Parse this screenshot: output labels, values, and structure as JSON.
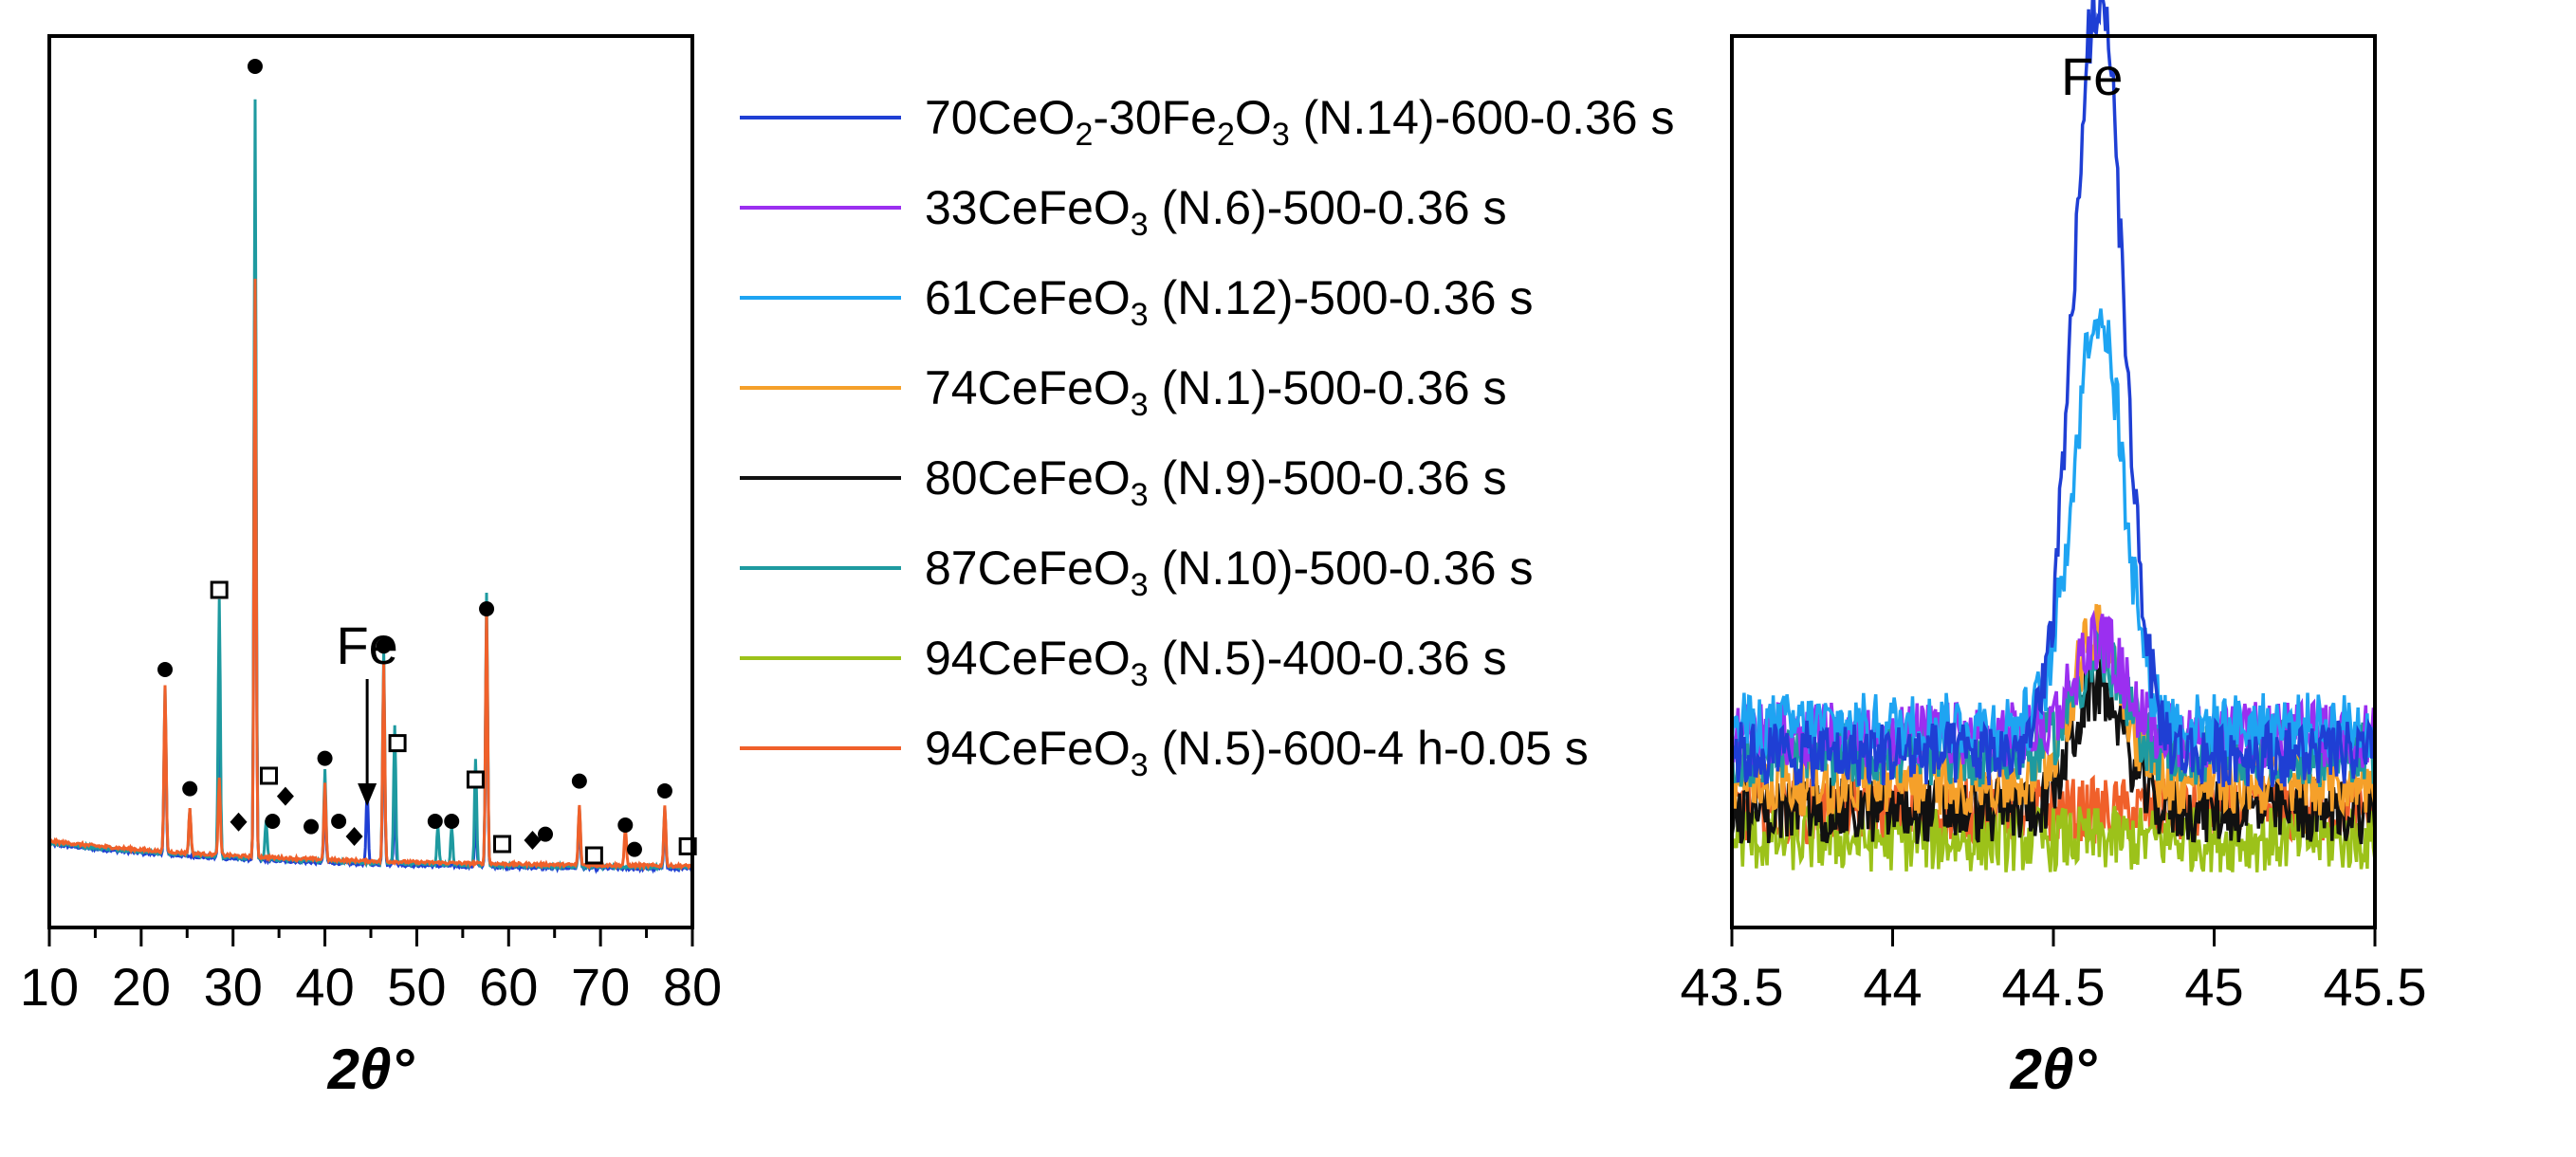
{
  "chart_data": [
    {
      "type": "line",
      "panel": "left",
      "title": "",
      "xlabel": "2θ°",
      "ylabel": "",
      "xlim": [
        10,
        80
      ],
      "xticks": [
        10,
        20,
        30,
        40,
        50,
        60,
        70,
        80
      ],
      "xtick_labels": [
        "10",
        "20",
        "30",
        "40",
        "50",
        "60",
        "70",
        "80"
      ],
      "annotation": "Fe",
      "annotation_x": 44.6,
      "series": [
        {
          "name": "70CeO2-30Fe2O3 (N.14)-600-0.36 s",
          "color": "#1f3fd4",
          "peaks": [
            [
              22.6,
              0.2
            ],
            [
              28.5,
              0.24
            ],
            [
              32.4,
              0.86
            ],
            [
              40.0,
              0.08
            ],
            [
              44.6,
              0.1
            ],
            [
              46.4,
              0.22
            ],
            [
              47.6,
              0.08
            ],
            [
              56.4,
              0.06
            ],
            [
              57.6,
              0.32
            ],
            [
              67.7,
              0.06
            ],
            [
              77.0,
              0.06
            ]
          ]
        },
        {
          "name": "87CeFeO3 (N.10)-500-0.36 s",
          "color": "#1e9aa0",
          "peaks": [
            [
              22.6,
              0.22
            ],
            [
              25.3,
              0.06
            ],
            [
              28.5,
              0.34
            ],
            [
              32.4,
              1.0
            ],
            [
              33.6,
              0.05
            ],
            [
              40.0,
              0.12
            ],
            [
              46.4,
              0.28
            ],
            [
              47.6,
              0.18
            ],
            [
              52.3,
              0.05
            ],
            [
              53.8,
              0.05
            ],
            [
              56.4,
              0.14
            ],
            [
              57.6,
              0.36
            ],
            [
              67.7,
              0.08
            ],
            [
              77.0,
              0.08
            ]
          ]
        },
        {
          "name": "94CeFeO3 (N.5)-600-4 h-0.05 s",
          "color": "#f0602a",
          "peaks": [
            [
              22.6,
              0.22
            ],
            [
              25.3,
              0.06
            ],
            [
              28.5,
              0.1
            ],
            [
              32.4,
              0.76
            ],
            [
              40.0,
              0.1
            ],
            [
              46.4,
              0.26
            ],
            [
              57.6,
              0.34
            ],
            [
              67.7,
              0.08
            ],
            [
              72.7,
              0.05
            ],
            [
              77.0,
              0.08
            ]
          ]
        }
      ],
      "markers": [
        {
          "symbol": "circle",
          "x": 22.6,
          "y": 0.265
        },
        {
          "symbol": "circle",
          "x": 25.3,
          "y": 0.108
        },
        {
          "symbol": "square",
          "x": 28.5,
          "y": 0.37
        },
        {
          "symbol": "circle",
          "x": 32.4,
          "y": 1.06
        },
        {
          "symbol": "square",
          "x": 33.9,
          "y": 0.125
        },
        {
          "symbol": "circle",
          "x": 34.3,
          "y": 0.065
        },
        {
          "symbol": "diamond",
          "x": 30.6,
          "y": 0.064
        },
        {
          "symbol": "diamond",
          "x": 35.7,
          "y": 0.098
        },
        {
          "symbol": "circle",
          "x": 38.5,
          "y": 0.058
        },
        {
          "symbol": "circle",
          "x": 40.0,
          "y": 0.148
        },
        {
          "symbol": "circle",
          "x": 41.5,
          "y": 0.065
        },
        {
          "symbol": "diamond",
          "x": 43.2,
          "y": 0.045
        },
        {
          "symbol": "circle",
          "x": 46.4,
          "y": 0.296
        },
        {
          "symbol": "square",
          "x": 47.9,
          "y": 0.168
        },
        {
          "symbol": "circle",
          "x": 52.0,
          "y": 0.065
        },
        {
          "symbol": "circle",
          "x": 53.8,
          "y": 0.065
        },
        {
          "symbol": "square",
          "x": 56.4,
          "y": 0.12
        },
        {
          "symbol": "circle",
          "x": 57.6,
          "y": 0.345
        },
        {
          "symbol": "square",
          "x": 59.3,
          "y": 0.035
        },
        {
          "symbol": "diamond",
          "x": 62.6,
          "y": 0.04
        },
        {
          "symbol": "circle",
          "x": 64.0,
          "y": 0.048
        },
        {
          "symbol": "circle",
          "x": 67.7,
          "y": 0.118
        },
        {
          "symbol": "square",
          "x": 69.3,
          "y": 0.02
        },
        {
          "symbol": "circle",
          "x": 72.7,
          "y": 0.06
        },
        {
          "symbol": "circle",
          "x": 73.7,
          "y": 0.028
        },
        {
          "symbol": "circle",
          "x": 77.0,
          "y": 0.105
        },
        {
          "symbol": "square",
          "x": 79.5,
          "y": 0.032
        }
      ]
    },
    {
      "type": "line",
      "panel": "right",
      "title": "",
      "xlabel": "2θ°",
      "ylabel": "",
      "xlim": [
        43.5,
        45.5
      ],
      "xticks": [
        43.5,
        44,
        44.5,
        45,
        45.5
      ],
      "xtick_labels": [
        "43.5",
        "44",
        "44.5",
        "45",
        "45.5"
      ],
      "annotation": "Fe",
      "annotation_x": 44.62,
      "peak_center": 44.64,
      "series": [
        {
          "name": "70CeO2-30Fe2O3 (N.14)-600-0.36 s",
          "color": "#1f3fd4",
          "peak_height": 0.8,
          "baseline": 0.16
        },
        {
          "name": "33CeFeO3 (N.6)-500-0.36 s",
          "color": "#9b2ff0",
          "peak_height": 0.1,
          "baseline": 0.18
        },
        {
          "name": "61CeFeO3 (N.12)-500-0.36 s",
          "color": "#1ea4f2",
          "peak_height": 0.44,
          "baseline": 0.19
        },
        {
          "name": "74CeFeO3 (N.1)-500-0.36 s",
          "color": "#f5a02a",
          "peak_height": 0.16,
          "baseline": 0.13
        },
        {
          "name": "80CeFeO3 (N.9)-500-0.36 s",
          "color": "#111111",
          "peak_height": 0.13,
          "baseline": 0.1
        },
        {
          "name": "87CeFeO3 (N.10)-500-0.36 s",
          "color": "#1e9aa0",
          "peak_height": 0.1,
          "baseline": 0.16
        },
        {
          "name": "94CeFeO3 (N.5)-400-0.36 s",
          "color": "#9cc21a",
          "peak_height": 0.0,
          "baseline": 0.07
        },
        {
          "name": "94CeFeO3 (N.5)-600-4 h-0.05 s",
          "color": "#f0602a",
          "peak_height": 0.0,
          "baseline": 0.1
        }
      ]
    }
  ],
  "legend": [
    {
      "color": "#1f3fd4",
      "parts": [
        "70CeO",
        "2",
        "-30Fe",
        "2",
        "O",
        "3",
        " (N.14)-600-0.36 s"
      ]
    },
    {
      "color": "#9b2ff0",
      "parts": [
        "33CeFeO",
        "3",
        " (N.6)-500-0.36 s"
      ]
    },
    {
      "color": "#1ea4f2",
      "parts": [
        "61CeFeO",
        "3",
        " (N.12)-500-0.36 s"
      ]
    },
    {
      "color": "#f5a02a",
      "parts": [
        "74CeFeO",
        "3",
        " (N.1)-500-0.36 s"
      ]
    },
    {
      "color": "#111111",
      "parts": [
        "80CeFeO",
        "3",
        " (N.9)-500-0.36 s"
      ]
    },
    {
      "color": "#1e9aa0",
      "parts": [
        "87CeFeO",
        "3",
        " (N.10)-500-0.36 s"
      ]
    },
    {
      "color": "#9cc21a",
      "parts": [
        "94CeFeO",
        "3",
        " (N.5)-400-0.36 s"
      ]
    },
    {
      "color": "#f0602a",
      "parts": [
        "94CeFeO",
        "3",
        " (N.5)-600-4 h-0.05 s"
      ]
    }
  ]
}
